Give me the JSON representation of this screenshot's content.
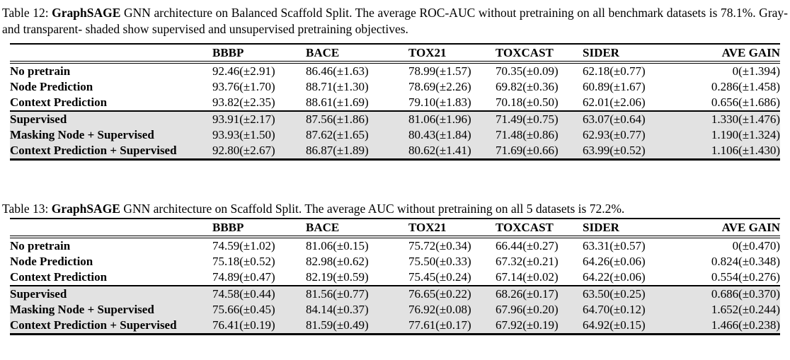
{
  "colors": {
    "page_background": "#ffffff",
    "row_shade": "#e2e2e2",
    "rule": "#000000"
  },
  "tables": [
    {
      "caption_prefix": "Table 12: ",
      "caption_model": "GraphSAGE",
      "caption_rest": " GNN architecture on Balanced Scaffold Split. The average ROC-AUC without pretraining on all benchmark datasets is 78.1%. Gray- and transparent- shaded show supervised and unsupervised pretraining objectives.",
      "columns": [
        "",
        "BBBP",
        "BACE",
        "TOX21",
        "TOXCAST",
        "SIDER",
        "AVE GAIN"
      ],
      "rows": [
        {
          "label": "No pretrain",
          "shaded": false,
          "separator_above": false,
          "values": [
            "92.46(±2.91)",
            "86.46(±1.63)",
            "78.99(±1.57)",
            "70.35(±0.09)",
            "62.18(±0.77)",
            "0(±1.394)"
          ]
        },
        {
          "label": "Node Prediction",
          "shaded": false,
          "separator_above": false,
          "values": [
            "93.76(±1.70)",
            "88.71(±1.30)",
            "78.69(±2.26)",
            "69.82(±0.36)",
            "60.89(±1.67)",
            "0.286(±1.458)"
          ]
        },
        {
          "label": "Context Prediction",
          "shaded": false,
          "separator_above": false,
          "values": [
            "93.82(±2.35)",
            "88.61(±1.69)",
            "79.10(±1.83)",
            "70.18(±0.50)",
            "62.01(±2.06)",
            "0.656(±1.686)"
          ]
        },
        {
          "label": "Supervised",
          "shaded": true,
          "separator_above": true,
          "values": [
            "93.91(±2.17)",
            "87.56(±1.86)",
            "81.06(±1.96)",
            "71.49(±0.75)",
            "63.07(±0.64)",
            "1.330(±1.476)"
          ]
        },
        {
          "label": "Masking Node + Supervised",
          "shaded": true,
          "separator_above": false,
          "values": [
            "93.93(±1.50)",
            "87.62(±1.65)",
            "80.43(±1.84)",
            "71.48(±0.86)",
            "62.93(±0.77)",
            "1.190(±1.324)"
          ]
        },
        {
          "label": "Context Prediction + Supervised",
          "shaded": true,
          "separator_above": false,
          "values": [
            "92.80(±2.67)",
            "86.87(±1.89)",
            "80.62(±1.41)",
            "71.69(±0.66)",
            "63.99(±0.52)",
            "1.106(±1.430)"
          ]
        }
      ]
    },
    {
      "caption_prefix": "Table 13: ",
      "caption_model": "GraphSAGE",
      "caption_rest": " GNN architecture on Scaffold Split. The average AUC without pretraining on all 5 datasets is 72.2%.",
      "columns": [
        "",
        "BBBP",
        "BACE",
        "TOX21",
        "TOXCAST",
        "SIDER",
        "AVE GAIN"
      ],
      "rows": [
        {
          "label": "No pretrain",
          "shaded": false,
          "separator_above": false,
          "values": [
            "74.59(±1.02)",
            "81.06(±0.15)",
            "75.72(±0.34)",
            "66.44(±0.27)",
            "63.31(±0.57)",
            "0(±0.470)"
          ]
        },
        {
          "label": "Node Prediction",
          "shaded": false,
          "separator_above": false,
          "values": [
            "75.18(±0.52)",
            "82.98(±0.62)",
            "75.50(±0.33)",
            "67.32(±0.21)",
            "64.26(±0.06)",
            "0.824(±0.348)"
          ]
        },
        {
          "label": "Context Prediction",
          "shaded": false,
          "separator_above": false,
          "values": [
            "74.89(±0.47)",
            "82.19(±0.59)",
            "75.45(±0.24)",
            "67.14(±0.02)",
            "64.22(±0.06)",
            "0.554(±0.276)"
          ]
        },
        {
          "label": "Supervised",
          "shaded": true,
          "separator_above": true,
          "values": [
            "74.58(±0.44)",
            "81.56(±0.77)",
            "76.65(±0.22)",
            "68.26(±0.17)",
            "63.50(±0.25)",
            "0.686(±0.370)"
          ]
        },
        {
          "label": "Masking Node + Supervised",
          "shaded": true,
          "separator_above": false,
          "values": [
            "75.66(±0.45)",
            "84.14(±0.37)",
            "76.92(±0.08)",
            "67.96(±0.20)",
            "64.70(±0.12)",
            "1.652(±0.244)"
          ]
        },
        {
          "label": "Context Prediction + Supervised",
          "shaded": true,
          "separator_above": false,
          "values": [
            "76.41(±0.19)",
            "81.59(±0.49)",
            "77.61(±0.17)",
            "67.92(±0.19)",
            "64.92(±0.15)",
            "1.466(±0.238)"
          ]
        }
      ]
    }
  ]
}
